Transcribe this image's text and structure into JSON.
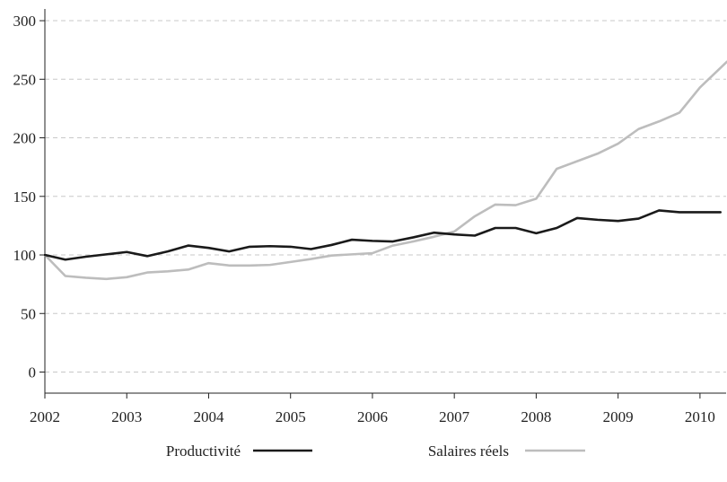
{
  "chart_data": {
    "type": "line",
    "title": "",
    "xlabel": "",
    "ylabel": "",
    "x_ticks": [
      "2002",
      "2003",
      "2004",
      "2005",
      "2006",
      "2007",
      "2008",
      "2009",
      "2010"
    ],
    "y_ticks": [
      0,
      50,
      100,
      150,
      200,
      250,
      300
    ],
    "xlim": [
      2002,
      2010.33
    ],
    "ylim": [
      -18,
      310
    ],
    "grid": "horizontal-dashed",
    "legend_position": "bottom",
    "series": [
      {
        "name": "Productivité",
        "color": "#1a1a1a",
        "points": [
          [
            2002.0,
            100
          ],
          [
            2002.25,
            96
          ],
          [
            2002.5,
            98.5
          ],
          [
            2002.75,
            100.5
          ],
          [
            2003.0,
            102.5
          ],
          [
            2003.25,
            99
          ],
          [
            2003.5,
            103
          ],
          [
            2003.75,
            108
          ],
          [
            2004.0,
            106
          ],
          [
            2004.25,
            103
          ],
          [
            2004.5,
            107
          ],
          [
            2004.75,
            107.5
          ],
          [
            2005.0,
            107
          ],
          [
            2005.25,
            105
          ],
          [
            2005.5,
            108.5
          ],
          [
            2005.75,
            113
          ],
          [
            2006.0,
            112
          ],
          [
            2006.25,
            111.5
          ],
          [
            2006.5,
            115
          ],
          [
            2006.75,
            119
          ],
          [
            2007.0,
            117.5
          ],
          [
            2007.25,
            116.5
          ],
          [
            2007.5,
            123
          ],
          [
            2007.75,
            123
          ],
          [
            2008.0,
            118.5
          ],
          [
            2008.25,
            123
          ],
          [
            2008.5,
            131.5
          ],
          [
            2008.75,
            130
          ],
          [
            2009.0,
            129
          ],
          [
            2009.25,
            131
          ],
          [
            2009.5,
            138
          ],
          [
            2009.75,
            136.5
          ],
          [
            2010.0,
            136.5
          ],
          [
            2010.25,
            136.5
          ]
        ]
      },
      {
        "name": "Salaires réels",
        "color": "#bdbdbd",
        "points": [
          [
            2002.0,
            100
          ],
          [
            2002.25,
            82
          ],
          [
            2002.5,
            80.5
          ],
          [
            2002.75,
            79.5
          ],
          [
            2003.0,
            81
          ],
          [
            2003.25,
            85
          ],
          [
            2003.5,
            86
          ],
          [
            2003.75,
            87.5
          ],
          [
            2004.0,
            93
          ],
          [
            2004.25,
            91
          ],
          [
            2004.5,
            91
          ],
          [
            2004.75,
            91.5
          ],
          [
            2005.0,
            94
          ],
          [
            2005.25,
            96.5
          ],
          [
            2005.5,
            99.5
          ],
          [
            2005.75,
            100.5
          ],
          [
            2006.0,
            101.5
          ],
          [
            2006.25,
            108
          ],
          [
            2006.5,
            111.5
          ],
          [
            2006.75,
            115.5
          ],
          [
            2007.0,
            120
          ],
          [
            2007.25,
            133
          ],
          [
            2007.5,
            143
          ],
          [
            2007.75,
            142.5
          ],
          [
            2008.0,
            148
          ],
          [
            2008.25,
            173.5
          ],
          [
            2008.5,
            180
          ],
          [
            2008.75,
            186.5
          ],
          [
            2009.0,
            195
          ],
          [
            2009.25,
            207.5
          ],
          [
            2009.5,
            214
          ],
          [
            2009.75,
            221.5
          ],
          [
            2010.0,
            243
          ],
          [
            2010.33,
            265
          ]
        ]
      }
    ]
  }
}
